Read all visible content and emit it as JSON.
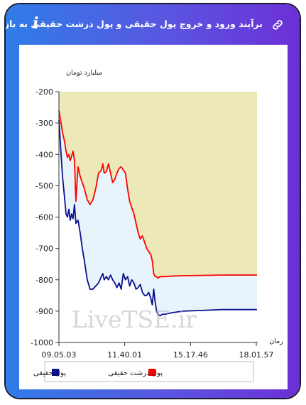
{
  "header": {
    "title": "برآیند ورود و خروج پول حقیقی و پول درشت حقیقی به بازار",
    "info_icon": "info-icon",
    "link_icon": "link-icon"
  },
  "colors": {
    "gradient_start": "#2f7de8",
    "gradient_end": "#6c2fd6",
    "series_haghighi": "#0a0f8c",
    "series_dorosht": "#ff0000",
    "fill_upper": "#ede8b8",
    "fill_between": "#e8f4fb"
  },
  "watermark": "LiveTSE.ir",
  "chart_data": {
    "type": "line",
    "ylabel": "میلیارد تومان",
    "xlabel": "زمان",
    "ylim": [
      -1000,
      -200
    ],
    "yticks": [
      "-200",
      "-300",
      "-400",
      "-500",
      "-600",
      "-700",
      "-800",
      "-900",
      "-1000"
    ],
    "xticks": [
      "09.05.03",
      "11.40.01",
      "15.17.46",
      "18.01.57"
    ],
    "grid": false,
    "legend_position": "bottom",
    "x": [
      0,
      3,
      5,
      8,
      10,
      12,
      14,
      16,
      18,
      20,
      22,
      24,
      27,
      30,
      33,
      36,
      40,
      44,
      48,
      52,
      56,
      60,
      62,
      64,
      67,
      70,
      73,
      76,
      79,
      82,
      85,
      88,
      91,
      94,
      97,
      100,
      103,
      106,
      109,
      112,
      115,
      118,
      121,
      124,
      127,
      130,
      132,
      134,
      136,
      138,
      140,
      143,
      146,
      150,
      160,
      175,
      200,
      230,
      260,
      280
    ],
    "series": [
      {
        "name": "پول حقیقی",
        "color": "#0a0f8c",
        "values": [
          -290,
          -400,
          -470,
          -540,
          -590,
          -600,
          -575,
          -610,
          -590,
          -605,
          -560,
          -620,
          -610,
          -650,
          -700,
          -740,
          -800,
          -830,
          -830,
          -820,
          -810,
          -790,
          -780,
          -800,
          -790,
          -800,
          -785,
          -800,
          -810,
          -825,
          -810,
          -830,
          -780,
          -800,
          -790,
          -820,
          -800,
          -810,
          -830,
          -825,
          -815,
          -840,
          -850,
          -850,
          -840,
          -860,
          -880,
          -830,
          -870,
          -900,
          -910,
          -915,
          -910,
          -910,
          -905,
          -900,
          -898,
          -895,
          -895,
          -895
        ]
      },
      {
        "name": "پول درشت حقیقی",
        "color": "#ff0000",
        "values": [
          -260,
          -300,
          -330,
          -360,
          -390,
          -410,
          -400,
          -420,
          -405,
          -390,
          -420,
          -550,
          -440,
          -470,
          -490,
          -510,
          -545,
          -560,
          -545,
          -510,
          -460,
          -450,
          -430,
          -460,
          -455,
          -430,
          -460,
          -490,
          -480,
          -460,
          -445,
          -440,
          -450,
          -460,
          -510,
          -550,
          -570,
          -590,
          -620,
          -650,
          -670,
          -660,
          -680,
          -700,
          -710,
          -720,
          -740,
          -780,
          -790,
          -790,
          -795,
          -790,
          -790,
          -790,
          -788,
          -787,
          -786,
          -785,
          -785,
          -785
        ]
      }
    ]
  }
}
